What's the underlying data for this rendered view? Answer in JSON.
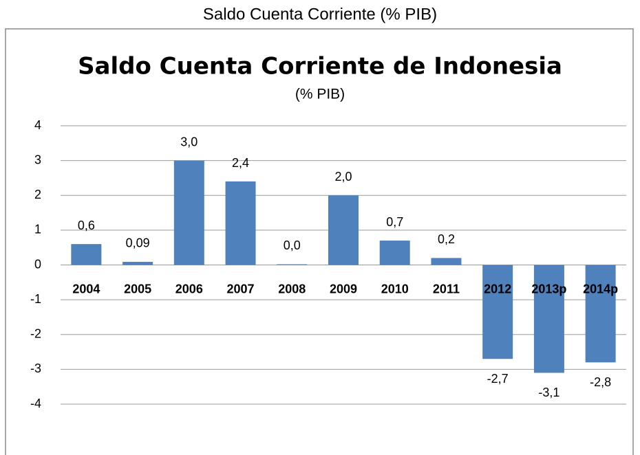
{
  "chart_data": {
    "type": "bar",
    "heading": "Saldo Cuenta Corriente (% PIB)",
    "title": "Saldo Cuenta Corriente de Indonesia",
    "subtitle": "(% PIB)",
    "categories": [
      "2004",
      "2005",
      "2006",
      "2007",
      "2008",
      "2009",
      "2010",
      "2011",
      "2012",
      "2013p",
      "2014p"
    ],
    "values": [
      0.6,
      0.09,
      3.0,
      2.4,
      0.02,
      2.0,
      0.7,
      0.2,
      -2.7,
      -3.1,
      -2.8
    ],
    "value_labels": [
      "0,6",
      "0,09",
      "3,0",
      "2,4",
      "0,0",
      "2,0",
      "0,7",
      "0,2",
      "-2,7",
      "-3,1",
      "-2,8"
    ],
    "color": "#4f81bd",
    "ylim": [
      -4,
      4
    ],
    "yticks": [
      -4,
      -3,
      -2,
      -1,
      0,
      1,
      2,
      3,
      4
    ],
    "grid": true
  }
}
